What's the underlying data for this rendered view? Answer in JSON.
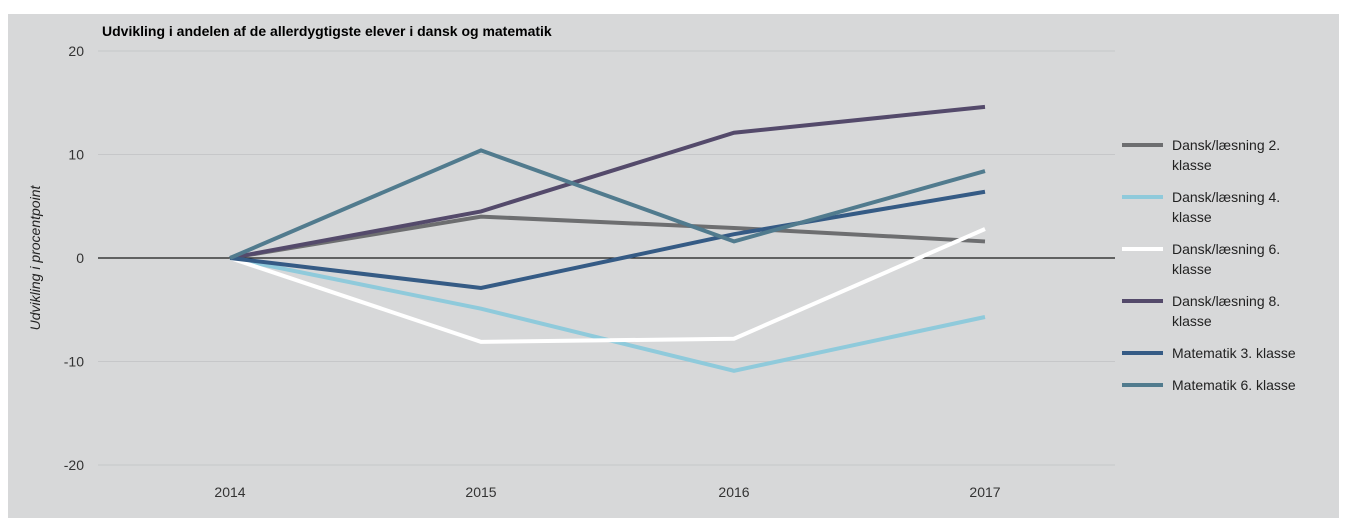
{
  "chart_data": {
    "type": "line",
    "title": "Udvikling i andelen af de allerdygtigste elever i dansk og matematik",
    "xlabel": "",
    "ylabel": "Udvikling i procentpoint",
    "categories": [
      "2014",
      "2015",
      "2016",
      "2017"
    ],
    "ylim": [
      -20,
      20
    ],
    "yticks": [
      -20,
      -10,
      0,
      10,
      20
    ],
    "grid": true,
    "legend_position": "right",
    "background": "#d7d8d9",
    "series": [
      {
        "name": "Dansk/læsning 2. klasse",
        "name_lines": [
          "Dansk/læsning 2.",
          "klasse"
        ],
        "color": "#6d6e70",
        "values": [
          0,
          4.0,
          2.9,
          1.6
        ]
      },
      {
        "name": "Dansk/læsning 4. klasse",
        "name_lines": [
          "Dansk/læsning 4.",
          "klasse"
        ],
        "color": "#8fcadb",
        "values": [
          0,
          -4.9,
          -10.9,
          -5.7
        ]
      },
      {
        "name": "Dansk/læsning 6. klasse",
        "name_lines": [
          "Dansk/læsning 6.",
          "klasse"
        ],
        "color": "#ffffff",
        "values": [
          0,
          -8.1,
          -7.8,
          2.8
        ]
      },
      {
        "name": "Dansk/læsning 8. klasse",
        "name_lines": [
          "Dansk/læsning 8.",
          "klasse"
        ],
        "color": "#544a6b",
        "values": [
          0,
          4.5,
          12.1,
          14.6
        ]
      },
      {
        "name": "Matematik 3. klasse",
        "name_lines": [
          "Matematik 3. klasse"
        ],
        "color": "#355b85",
        "values": [
          0,
          -2.9,
          2.3,
          6.4
        ]
      },
      {
        "name": "Matematik 6. klasse",
        "name_lines": [
          "Matematik 6. klasse"
        ],
        "color": "#517b8e",
        "values": [
          0,
          10.4,
          1.6,
          8.4
        ]
      }
    ]
  }
}
